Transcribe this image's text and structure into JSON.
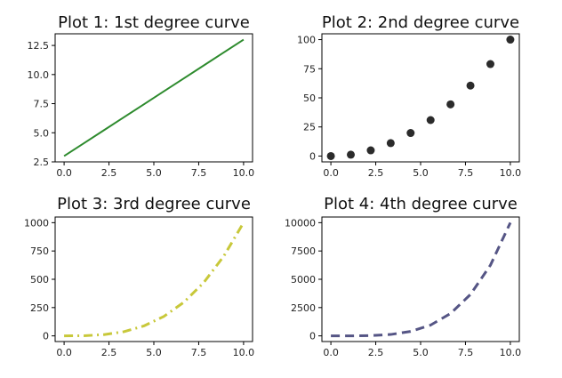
{
  "chart_data": [
    {
      "type": "line",
      "title": "Plot 1: 1st degree curve",
      "xlabel": "",
      "ylabel": "",
      "x": [
        0,
        1.111,
        2.222,
        3.333,
        4.444,
        5.556,
        6.667,
        7.778,
        8.889,
        10
      ],
      "series": [
        {
          "values": [
            3,
            4.111,
            5.222,
            6.333,
            7.444,
            8.556,
            9.667,
            10.778,
            11.889,
            13
          ],
          "color": "#2e8b2e",
          "style": "solid"
        }
      ],
      "xlim": [
        -0.5,
        10.5
      ],
      "ylim": [
        2.5,
        13.5
      ],
      "xticks": [
        0,
        2.5,
        5,
        7.5,
        10
      ],
      "xtick_labels": [
        "0.0",
        "2.5",
        "5.0",
        "7.5",
        "10.0"
      ],
      "yticks": [
        2.5,
        5,
        7.5,
        10,
        12.5
      ],
      "ytick_labels": [
        "2.5",
        "5.0",
        "7.5",
        "10.0",
        "12.5"
      ],
      "grid": false
    },
    {
      "type": "scatter",
      "title": "Plot 2: 2nd degree curve",
      "xlabel": "",
      "ylabel": "",
      "x": [
        0,
        1.111,
        2.222,
        3.333,
        4.444,
        5.556,
        6.667,
        7.778,
        8.889,
        10
      ],
      "series": [
        {
          "values": [
            0,
            1.2,
            4.9,
            11.1,
            19.8,
            30.9,
            44.4,
            60.5,
            79,
            100
          ],
          "color": "#2b2b2b",
          "style": "markers"
        }
      ],
      "xlim": [
        -0.5,
        10.5
      ],
      "ylim": [
        -5,
        105
      ],
      "xticks": [
        0,
        2.5,
        5,
        7.5,
        10
      ],
      "xtick_labels": [
        "0.0",
        "2.5",
        "5.0",
        "7.5",
        "10.0"
      ],
      "yticks": [
        0,
        25,
        50,
        75,
        100
      ],
      "ytick_labels": [
        "0",
        "25",
        "50",
        "75",
        "100"
      ],
      "grid": false
    },
    {
      "type": "line",
      "title": "Plot 3: 3rd degree curve",
      "xlabel": "",
      "ylabel": "",
      "x": [
        0,
        1.111,
        2.222,
        3.333,
        4.444,
        5.556,
        6.667,
        7.778,
        8.889,
        10
      ],
      "series": [
        {
          "values": [
            0,
            1.4,
            11,
            37,
            87.8,
            171.5,
            296.3,
            470.5,
            702.3,
            1000
          ],
          "color": "#c8c83a",
          "style": "dashdot"
        }
      ],
      "xlim": [
        -0.5,
        10.5
      ],
      "ylim": [
        -50,
        1050
      ],
      "xticks": [
        0,
        2.5,
        5,
        7.5,
        10
      ],
      "xtick_labels": [
        "0.0",
        "2.5",
        "5.0",
        "7.5",
        "10.0"
      ],
      "yticks": [
        0,
        250,
        500,
        750,
        1000
      ],
      "ytick_labels": [
        "0",
        "250",
        "500",
        "750",
        "1000"
      ],
      "grid": false
    },
    {
      "type": "line",
      "title": "Plot 4: 4th degree curve",
      "xlabel": "",
      "ylabel": "",
      "x": [
        0,
        1.111,
        2.222,
        3.333,
        4.444,
        5.556,
        6.667,
        7.778,
        8.889,
        10
      ],
      "series": [
        {
          "values": [
            0,
            1.5,
            24.4,
            123.5,
            390.2,
            952.6,
            1975.3,
            3659.5,
            6242.9,
            10000
          ],
          "color": "#555585",
          "style": "dashed"
        }
      ],
      "xlim": [
        -0.5,
        10.5
      ],
      "ylim": [
        -500,
        10500
      ],
      "xticks": [
        0,
        2.5,
        5,
        7.5,
        10
      ],
      "xtick_labels": [
        "0.0",
        "2.5",
        "5.0",
        "7.5",
        "10.0"
      ],
      "yticks": [
        0,
        2500,
        5000,
        7500,
        10000
      ],
      "ytick_labels": [
        "0",
        "2500",
        "5000",
        "7500",
        "10000"
      ],
      "grid": false
    }
  ]
}
